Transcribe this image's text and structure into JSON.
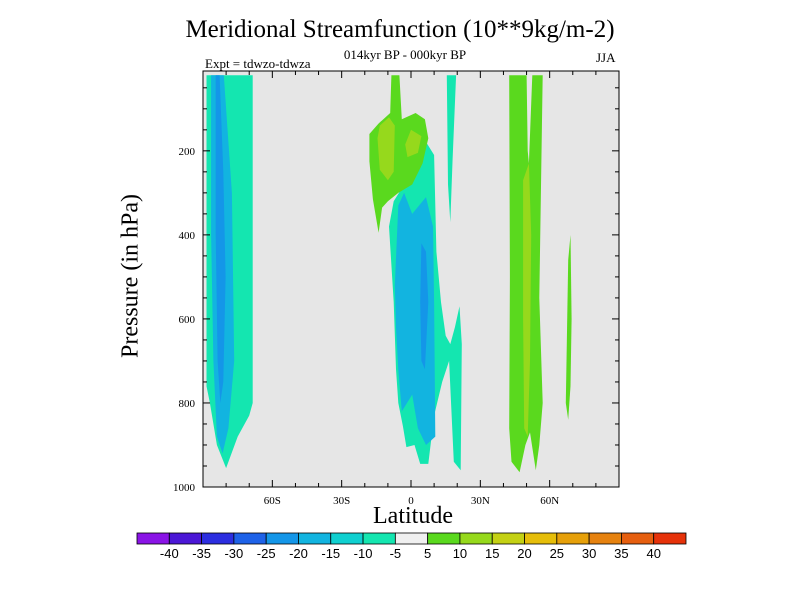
{
  "chart_data": {
    "type": "heatmap",
    "title": "Meridional Streamfunction (10**9kg/m-2)",
    "subtitle": "014kyr BP - 000kyr BP",
    "left_label": "Expt = tdwzo-tdwza",
    "right_label": "JJA",
    "xlabel": "Latitude",
    "ylabel": "Pressure (in hPa)",
    "x_ticks": [
      {
        "value": -60,
        "label": "60S"
      },
      {
        "value": -30,
        "label": "30S"
      },
      {
        "value": 0,
        "label": "0"
      },
      {
        "value": 30,
        "label": "30N"
      },
      {
        "value": 60,
        "label": "60N"
      }
    ],
    "y_ticks": [
      {
        "value": 200,
        "label": "200"
      },
      {
        "value": 400,
        "label": "400"
      },
      {
        "value": 600,
        "label": "600"
      },
      {
        "value": 800,
        "label": "800"
      },
      {
        "value": 1000,
        "label": "1000"
      }
    ],
    "xlim": [
      -90,
      90
    ],
    "ylim": [
      1000,
      10
    ],
    "y_inverted": true,
    "background_color": "#e6e6e6",
    "colorbar": {
      "labels": [
        "-40",
        "-35",
        "-30",
        "-25",
        "-20",
        "-15",
        "-10",
        "-5",
        "5",
        "10",
        "15",
        "20",
        "25",
        "30",
        "35",
        "40"
      ],
      "colors": [
        "#8a14e6",
        "#4b17d6",
        "#2c2ee0",
        "#1e62e8",
        "#1496e8",
        "#12b4e0",
        "#0fd0d0",
        "#14e6b0",
        "#f0f0f0",
        "#5ad91e",
        "#96d91c",
        "#c4d114",
        "#e6be0a",
        "#e6a00a",
        "#e6820f",
        "#e65f0f",
        "#e6320a"
      ]
    },
    "regions": [
      {
        "name": "sh-outer-band",
        "level": "-10 to -5",
        "color": "#14e6b0",
        "points": [
          [
            -88.5,
            20
          ],
          [
            -68.5,
            20
          ],
          [
            -68.5,
            800
          ],
          [
            -70,
            830
          ],
          [
            -72,
            850
          ],
          [
            -75,
            880
          ],
          [
            -80,
            955
          ],
          [
            -84,
            900
          ],
          [
            -87,
            800
          ],
          [
            -88.5,
            760
          ]
        ]
      },
      {
        "name": "sh-mid-band",
        "level": "-15 to -10",
        "color": "#12b4e0",
        "points": [
          [
            -86.5,
            20
          ],
          [
            -81,
            20
          ],
          [
            -77.5,
            300
          ],
          [
            -76.5,
            700
          ],
          [
            -79,
            860
          ],
          [
            -81.5,
            920
          ],
          [
            -84,
            880
          ],
          [
            -85.5,
            700
          ],
          [
            -86.5,
            400
          ]
        ]
      },
      {
        "name": "sh-core",
        "level": "-20 to -15",
        "color": "#1496e8",
        "points": [
          [
            -84.5,
            20
          ],
          [
            -82.8,
            20
          ],
          [
            -81.2,
            250
          ],
          [
            -80.2,
            500
          ],
          [
            -81.2,
            750
          ],
          [
            -82.5,
            800
          ],
          [
            -83.7,
            700
          ],
          [
            -84.5,
            400
          ]
        ]
      },
      {
        "name": "eq-outer",
        "level": "-10 to -5",
        "color": "#14e6b0",
        "points": [
          [
            -9.5,
            380
          ],
          [
            -7.5,
            320
          ],
          [
            -3,
            280
          ],
          [
            1.5,
            230
          ],
          [
            5.5,
            170
          ],
          [
            10,
            210
          ],
          [
            11,
            440
          ],
          [
            13,
            560
          ],
          [
            15,
            640
          ],
          [
            17,
            660
          ],
          [
            19,
            620
          ],
          [
            21,
            570
          ],
          [
            22,
            660
          ],
          [
            21.5,
            960
          ],
          [
            18.5,
            940
          ],
          [
            16.5,
            700
          ],
          [
            13.5,
            750
          ],
          [
            10,
            830
          ],
          [
            7.5,
            945
          ],
          [
            4,
            945
          ],
          [
            1.5,
            900
          ],
          [
            -2,
            905
          ],
          [
            -3.5,
            855
          ],
          [
            -5.5,
            800
          ],
          [
            -6.5,
            720
          ],
          [
            -7.5,
            560
          ]
        ]
      },
      {
        "name": "eq-mid",
        "level": "-15 to -10",
        "color": "#12b4e0",
        "points": [
          [
            -7,
            520
          ],
          [
            -5.5,
            330
          ],
          [
            -3,
            300
          ],
          [
            0.5,
            350
          ],
          [
            3.5,
            330
          ],
          [
            6.5,
            310
          ],
          [
            9.5,
            380
          ],
          [
            10,
            560
          ],
          [
            10.5,
            880
          ],
          [
            6.5,
            900
          ],
          [
            3,
            860
          ],
          [
            0.5,
            780
          ],
          [
            -4,
            820
          ],
          [
            -5.5,
            720
          ],
          [
            -6.5,
            620
          ]
        ]
      },
      {
        "name": "eq-core",
        "level": "-20 to -15",
        "color": "#1496e8",
        "points": [
          [
            4.5,
            420
          ],
          [
            6.5,
            440
          ],
          [
            7.5,
            560
          ],
          [
            6,
            720
          ],
          [
            4.5,
            700
          ],
          [
            4,
            560
          ]
        ]
      },
      {
        "name": "eq-upper-band",
        "level": "-10 to -5",
        "color": "#14e6b0",
        "points": [
          [
            15.5,
            20
          ],
          [
            19.5,
            20
          ],
          [
            18,
            220
          ],
          [
            17,
            370
          ],
          [
            16,
            280
          ]
        ]
      },
      {
        "name": "nh-trop-upper",
        "level": "5 to 10",
        "color": "#5ad91e",
        "points": [
          [
            -18,
            160
          ],
          [
            -14,
            135
          ],
          [
            -9,
            110
          ],
          [
            -8.5,
            20
          ],
          [
            -5,
            20
          ],
          [
            -4,
            125
          ],
          [
            2,
            110
          ],
          [
            6,
            125
          ],
          [
            7.5,
            170
          ],
          [
            5,
            230
          ],
          [
            0.5,
            280
          ],
          [
            -5.5,
            300
          ],
          [
            -10,
            320
          ],
          [
            -12.5,
            335
          ],
          [
            -14,
            395
          ],
          [
            -16.5,
            315
          ],
          [
            -18,
            225
          ]
        ]
      },
      {
        "name": "nh-trop-upper-core1",
        "level": "10 to 15",
        "color": "#96d91c",
        "points": [
          [
            -14.5,
            170
          ],
          [
            -13.5,
            140
          ],
          [
            -9.5,
            120
          ],
          [
            -7,
            140
          ],
          [
            -7.5,
            250
          ],
          [
            -10,
            270
          ],
          [
            -13.5,
            245
          ]
        ]
      },
      {
        "name": "nh-trop-upper-core2",
        "level": "10 to 15",
        "color": "#96d91c",
        "points": [
          [
            -2.5,
            185
          ],
          [
            0,
            150
          ],
          [
            4.5,
            165
          ],
          [
            3,
            205
          ],
          [
            -1.5,
            215
          ]
        ]
      },
      {
        "name": "nh-mid-band",
        "level": "5 to 10",
        "color": "#5ad91e",
        "points": [
          [
            42.5,
            20
          ],
          [
            50,
            20
          ],
          [
            50.5,
            200
          ],
          [
            51,
            230
          ],
          [
            52.5,
            20
          ],
          [
            57,
            20
          ],
          [
            55.5,
            550
          ],
          [
            57,
            800
          ],
          [
            55.5,
            900
          ],
          [
            54,
            960
          ],
          [
            51.5,
            870
          ],
          [
            49.5,
            900
          ],
          [
            47,
            965
          ],
          [
            43.5,
            940
          ],
          [
            42.5,
            860
          ],
          [
            42.8,
            500
          ]
        ]
      },
      {
        "name": "nh-mid-core",
        "level": "10 to 15",
        "color": "#96d91c",
        "points": [
          [
            48.5,
            270
          ],
          [
            51,
            230
          ],
          [
            52,
            400
          ],
          [
            51.5,
            700
          ],
          [
            50.5,
            880
          ],
          [
            49,
            860
          ],
          [
            48.5,
            600
          ]
        ]
      },
      {
        "name": "nh-high-sliver",
        "level": "5 to 10",
        "color": "#5ad91e",
        "points": [
          [
            67,
            800
          ],
          [
            68,
            460
          ],
          [
            69,
            400
          ],
          [
            69.5,
            600
          ],
          [
            69,
            760
          ],
          [
            68,
            840
          ]
        ]
      }
    ]
  }
}
